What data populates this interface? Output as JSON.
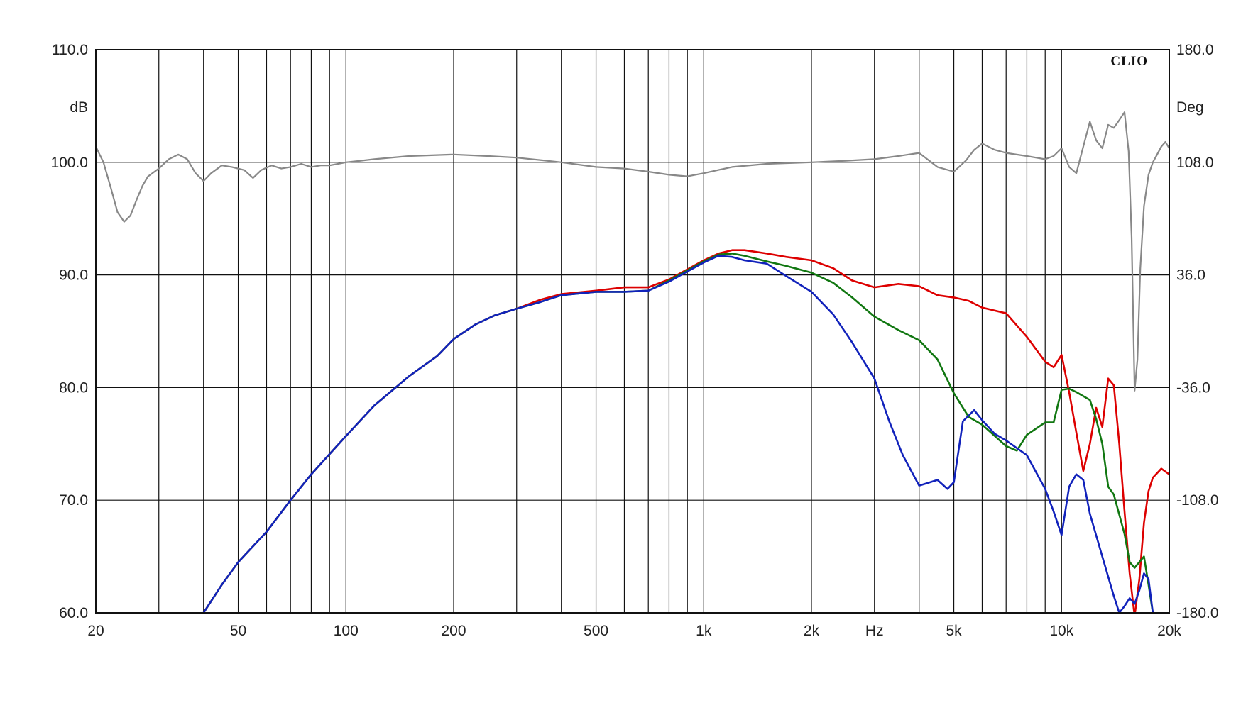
{
  "chart_data": {
    "type": "line",
    "title": "",
    "brand_label": "CLIO",
    "xlabel": "Hz",
    "ylabel": "dB",
    "y2label": "Deg",
    "x_scale": "log",
    "xlim": [
      20,
      20000
    ],
    "ylim": [
      60,
      110
    ],
    "y2lim": [
      -180,
      180
    ],
    "grid": true,
    "x_tick_labels": [
      {
        "value": 20,
        "label": "20"
      },
      {
        "value": 50,
        "label": "50"
      },
      {
        "value": 100,
        "label": "100"
      },
      {
        "value": 200,
        "label": "200"
      },
      {
        "value": 500,
        "label": "500"
      },
      {
        "value": 1000,
        "label": "1k"
      },
      {
        "value": 2000,
        "label": "2k"
      },
      {
        "value": 5000,
        "label": "5k"
      },
      {
        "value": 10000,
        "label": "10k"
      },
      {
        "value": 20000,
        "label": "20k"
      }
    ],
    "y_ticks": [
      "60.0",
      "70.0",
      "80.0",
      "90.0",
      "100.0",
      "110.0"
    ],
    "y2_ticks": [
      "-180.0",
      "-108.0",
      "-36.0",
      "36.0",
      "108.0",
      "180.0"
    ],
    "series": [
      {
        "color": "#888888",
        "axis": "right",
        "points": [
          [
            20,
            118
          ],
          [
            21,
            108
          ],
          [
            22,
            92
          ],
          [
            23,
            76
          ],
          [
            24,
            70
          ],
          [
            25,
            74
          ],
          [
            26,
            84
          ],
          [
            27,
            93
          ],
          [
            28,
            99
          ],
          [
            30,
            104
          ],
          [
            32,
            110
          ],
          [
            34,
            113
          ],
          [
            36,
            110
          ],
          [
            38,
            101
          ],
          [
            40,
            96
          ],
          [
            42,
            101
          ],
          [
            45,
            106
          ],
          [
            48,
            105
          ],
          [
            52,
            103
          ],
          [
            55,
            98
          ],
          [
            58,
            103
          ],
          [
            62,
            106
          ],
          [
            66,
            104
          ],
          [
            70,
            105
          ],
          [
            75,
            107
          ],
          [
            80,
            105
          ],
          [
            85,
            106
          ],
          [
            90,
            106
          ],
          [
            95,
            107
          ],
          [
            100,
            108
          ],
          [
            110,
            109
          ],
          [
            120,
            110
          ],
          [
            150,
            112
          ],
          [
            200,
            113
          ],
          [
            250,
            112
          ],
          [
            300,
            111
          ],
          [
            400,
            108
          ],
          [
            500,
            105
          ],
          [
            600,
            104
          ],
          [
            700,
            102
          ],
          [
            800,
            100
          ],
          [
            900,
            99
          ],
          [
            1000,
            101
          ],
          [
            1200,
            105
          ],
          [
            1500,
            107
          ],
          [
            2000,
            108
          ],
          [
            2500,
            109
          ],
          [
            3000,
            110
          ],
          [
            3500,
            112
          ],
          [
            4000,
            114
          ],
          [
            4500,
            105
          ],
          [
            5000,
            102
          ],
          [
            5400,
            109
          ],
          [
            5700,
            116
          ],
          [
            6000,
            120
          ],
          [
            6500,
            116
          ],
          [
            7000,
            114
          ],
          [
            8000,
            112
          ],
          [
            9000,
            110
          ],
          [
            9500,
            112
          ],
          [
            10000,
            117
          ],
          [
            10500,
            105
          ],
          [
            11000,
            101
          ],
          [
            11500,
            118
          ],
          [
            12000,
            134
          ],
          [
            12500,
            122
          ],
          [
            13000,
            117
          ],
          [
            13500,
            132
          ],
          [
            14000,
            130
          ],
          [
            14500,
            135
          ],
          [
            15000,
            140
          ],
          [
            15400,
            115
          ],
          [
            15700,
            60
          ],
          [
            16000,
            -38
          ],
          [
            16300,
            -18
          ],
          [
            16600,
            40
          ],
          [
            17000,
            80
          ],
          [
            17500,
            100
          ],
          [
            18000,
            108
          ],
          [
            18500,
            113
          ],
          [
            19000,
            118
          ],
          [
            19500,
            121
          ],
          [
            20000,
            117
          ]
        ]
      },
      {
        "color": "#dd0000",
        "axis": "left",
        "points": [
          [
            40,
            60.0
          ],
          [
            45,
            62.5
          ],
          [
            50,
            64.5
          ],
          [
            60,
            67.2
          ],
          [
            70,
            70.0
          ],
          [
            80,
            72.3
          ],
          [
            100,
            75.7
          ],
          [
            120,
            78.4
          ],
          [
            150,
            81.0
          ],
          [
            180,
            82.8
          ],
          [
            200,
            84.3
          ],
          [
            230,
            85.6
          ],
          [
            260,
            86.4
          ],
          [
            300,
            87.0
          ],
          [
            350,
            87.8
          ],
          [
            400,
            88.3
          ],
          [
            500,
            88.6
          ],
          [
            600,
            88.9
          ],
          [
            700,
            88.9
          ],
          [
            800,
            89.6
          ],
          [
            900,
            90.5
          ],
          [
            1000,
            91.3
          ],
          [
            1100,
            91.9
          ],
          [
            1200,
            92.2
          ],
          [
            1300,
            92.2
          ],
          [
            1500,
            91.9
          ],
          [
            1700,
            91.6
          ],
          [
            2000,
            91.3
          ],
          [
            2300,
            90.6
          ],
          [
            2600,
            89.5
          ],
          [
            3000,
            88.9
          ],
          [
            3500,
            89.2
          ],
          [
            4000,
            89.0
          ],
          [
            4500,
            88.2
          ],
          [
            5000,
            88.0
          ],
          [
            5500,
            87.7
          ],
          [
            6000,
            87.1
          ],
          [
            7000,
            86.6
          ],
          [
            8000,
            84.5
          ],
          [
            9000,
            82.3
          ],
          [
            9500,
            81.8
          ],
          [
            10000,
            82.9
          ],
          [
            10500,
            79.6
          ],
          [
            11000,
            76.0
          ],
          [
            11500,
            72.6
          ],
          [
            12000,
            75.0
          ],
          [
            12500,
            78.2
          ],
          [
            13000,
            76.5
          ],
          [
            13500,
            80.8
          ],
          [
            14000,
            80.2
          ],
          [
            14500,
            75.0
          ],
          [
            15000,
            69.0
          ],
          [
            15500,
            63.5
          ],
          [
            16000,
            59.7
          ],
          [
            16500,
            63.0
          ],
          [
            17000,
            68.0
          ],
          [
            17500,
            70.8
          ],
          [
            18000,
            72.0
          ],
          [
            19000,
            72.8
          ],
          [
            20000,
            72.3
          ]
        ]
      },
      {
        "color": "#117711",
        "axis": "left",
        "points": [
          [
            40,
            60.0
          ],
          [
            45,
            62.5
          ],
          [
            50,
            64.5
          ],
          [
            60,
            67.2
          ],
          [
            70,
            70.0
          ],
          [
            80,
            72.3
          ],
          [
            100,
            75.7
          ],
          [
            120,
            78.4
          ],
          [
            150,
            81.0
          ],
          [
            180,
            82.8
          ],
          [
            200,
            84.3
          ],
          [
            230,
            85.6
          ],
          [
            260,
            86.4
          ],
          [
            300,
            87.0
          ],
          [
            350,
            87.6
          ],
          [
            400,
            88.2
          ],
          [
            500,
            88.5
          ],
          [
            600,
            88.5
          ],
          [
            700,
            88.6
          ],
          [
            800,
            89.5
          ],
          [
            900,
            90.4
          ],
          [
            1000,
            91.2
          ],
          [
            1100,
            91.8
          ],
          [
            1200,
            91.9
          ],
          [
            1300,
            91.7
          ],
          [
            1500,
            91.2
          ],
          [
            1700,
            90.8
          ],
          [
            2000,
            90.2
          ],
          [
            2300,
            89.3
          ],
          [
            2600,
            88.0
          ],
          [
            3000,
            86.3
          ],
          [
            3500,
            85.1
          ],
          [
            4000,
            84.2
          ],
          [
            4500,
            82.5
          ],
          [
            5000,
            79.5
          ],
          [
            5500,
            77.4
          ],
          [
            6000,
            76.7
          ],
          [
            7000,
            74.8
          ],
          [
            7500,
            74.4
          ],
          [
            8000,
            75.8
          ],
          [
            9000,
            76.9
          ],
          [
            9500,
            76.9
          ],
          [
            10000,
            79.8
          ],
          [
            10500,
            79.9
          ],
          [
            11000,
            79.6
          ],
          [
            12000,
            78.9
          ],
          [
            12500,
            77.2
          ],
          [
            13000,
            75.0
          ],
          [
            13500,
            71.2
          ],
          [
            14000,
            70.5
          ],
          [
            15000,
            67.0
          ],
          [
            15500,
            64.5
          ],
          [
            16000,
            64.0
          ],
          [
            17000,
            65.0
          ],
          [
            17500,
            62.5
          ],
          [
            18000,
            60.0
          ]
        ]
      },
      {
        "color": "#1122bb",
        "axis": "left",
        "points": [
          [
            40,
            60.0
          ],
          [
            45,
            62.5
          ],
          [
            50,
            64.5
          ],
          [
            60,
            67.2
          ],
          [
            70,
            70.0
          ],
          [
            80,
            72.3
          ],
          [
            100,
            75.7
          ],
          [
            120,
            78.4
          ],
          [
            150,
            81.0
          ],
          [
            180,
            82.8
          ],
          [
            200,
            84.3
          ],
          [
            230,
            85.6
          ],
          [
            260,
            86.4
          ],
          [
            300,
            87.0
          ],
          [
            350,
            87.6
          ],
          [
            400,
            88.2
          ],
          [
            500,
            88.5
          ],
          [
            600,
            88.5
          ],
          [
            700,
            88.6
          ],
          [
            800,
            89.4
          ],
          [
            900,
            90.3
          ],
          [
            1000,
            91.1
          ],
          [
            1100,
            91.7
          ],
          [
            1200,
            91.6
          ],
          [
            1300,
            91.3
          ],
          [
            1500,
            91.0
          ],
          [
            1700,
            89.9
          ],
          [
            2000,
            88.5
          ],
          [
            2300,
            86.5
          ],
          [
            2600,
            84.0
          ],
          [
            3000,
            80.8
          ],
          [
            3300,
            77.0
          ],
          [
            3600,
            74.0
          ],
          [
            4000,
            71.3
          ],
          [
            4200,
            71.5
          ],
          [
            4500,
            71.8
          ],
          [
            4800,
            71.0
          ],
          [
            5000,
            71.6
          ],
          [
            5300,
            77.0
          ],
          [
            5700,
            78.0
          ],
          [
            6000,
            77.1
          ],
          [
            6500,
            75.9
          ],
          [
            7000,
            75.3
          ],
          [
            8000,
            74.0
          ],
          [
            9000,
            71.0
          ],
          [
            9500,
            69.0
          ],
          [
            10000,
            66.9
          ],
          [
            10500,
            71.2
          ],
          [
            11000,
            72.3
          ],
          [
            11500,
            71.8
          ],
          [
            12000,
            68.8
          ],
          [
            13000,
            65.0
          ],
          [
            14000,
            61.5
          ],
          [
            14500,
            60.0
          ],
          [
            15000,
            60.6
          ],
          [
            15500,
            61.3
          ],
          [
            16000,
            60.8
          ],
          [
            16500,
            62.0
          ],
          [
            17000,
            63.5
          ],
          [
            17500,
            63.0
          ],
          [
            18000,
            60.0
          ]
        ]
      }
    ]
  }
}
